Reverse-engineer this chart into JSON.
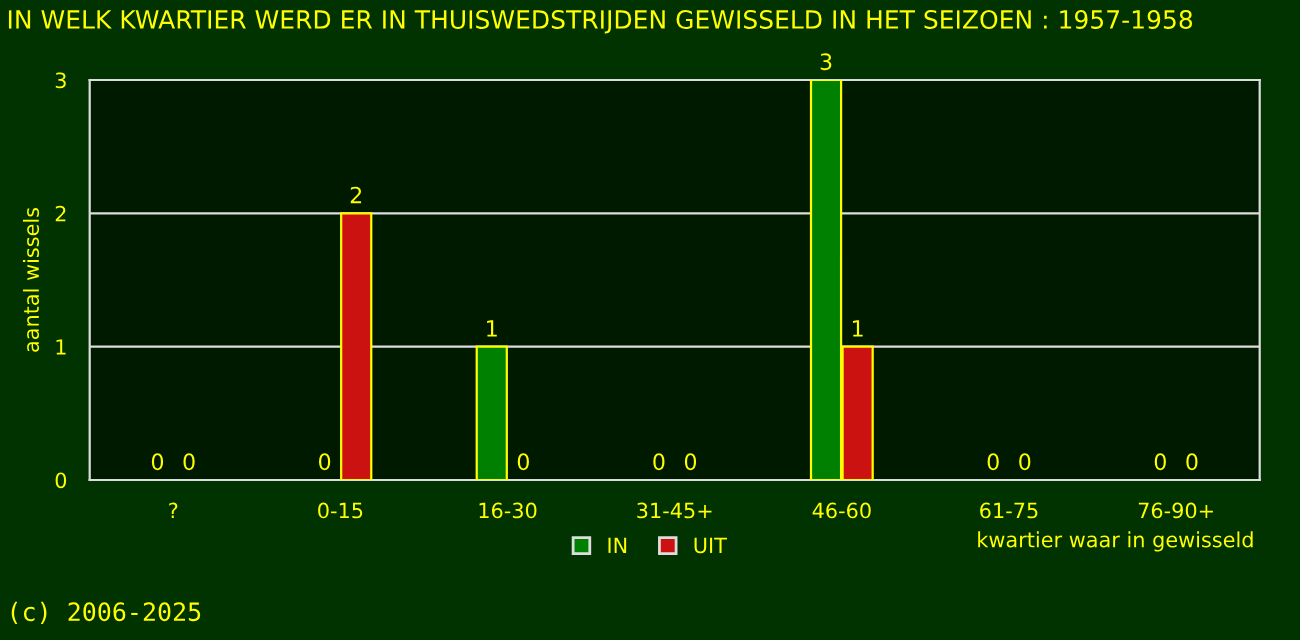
{
  "chart_data": {
    "type": "bar",
    "title": "IN WELK KWARTIER WERD ER IN THUISWEDSTRIJDEN GEWISSELD IN HET SEIZOEN : 1957-1958",
    "xlabel": "kwartier waar in gewisseld",
    "ylabel": "aantal wissels",
    "categories": [
      "?",
      "0-15",
      "16-30",
      "31-45+",
      "46-60",
      "61-75",
      "76-90+"
    ],
    "series": [
      {
        "name": "IN",
        "color": "#008000",
        "values": [
          0,
          0,
          1,
          0,
          3,
          0,
          0
        ]
      },
      {
        "name": "UIT",
        "color": "#cc1111",
        "values": [
          0,
          2,
          0,
          0,
          1,
          0,
          0
        ]
      }
    ],
    "ylim": [
      0,
      3
    ],
    "yticks": [
      0,
      1,
      2,
      3
    ],
    "grid": "y",
    "legend": "bottom",
    "data_labels": true,
    "annotations": [
      "(c) 2006-2025"
    ]
  }
}
